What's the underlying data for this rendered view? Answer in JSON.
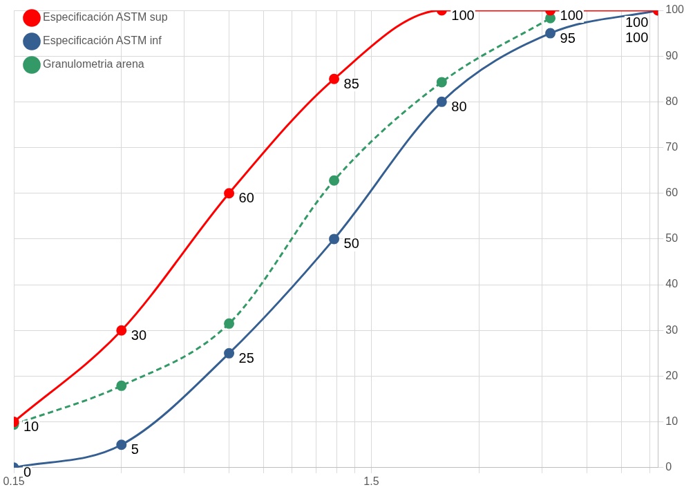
{
  "chart_data": {
    "type": "line",
    "log": "x",
    "x": [
      0.15,
      0.3,
      0.6,
      1.18,
      2.36,
      4.75,
      9.5
    ],
    "series": [
      {
        "name": "Especificación ASTM sup",
        "color": "#ff0000",
        "values": [
          10,
          30,
          60,
          85,
          100,
          100,
          100
        ],
        "value_labels": [
          "10",
          "30",
          "60",
          "85",
          "100",
          "100",
          "100"
        ]
      },
      {
        "name": "Especificación ASTM inf",
        "color": "#355f91",
        "values": [
          0,
          5,
          25,
          50,
          80,
          95,
          100
        ],
        "value_labels": [
          "0",
          "5",
          "25",
          "50",
          "80",
          "95",
          "100"
        ]
      },
      {
        "name": "Granulometria arena",
        "color": "#339966",
        "line_style": "dashed",
        "values": [
          9.4,
          17.9,
          31.5,
          62.8,
          84.3,
          98.3,
          null
        ]
      }
    ],
    "xlim": [
      0.15,
      9.5
    ],
    "xticks": [
      0.15,
      {
        "value": 0.3,
        "label": null
      },
      {
        "value": 0.45,
        "label": null
      },
      {
        "value": 0.6,
        "label": null
      },
      {
        "value": 0.75,
        "label": null
      },
      {
        "value": 0.9,
        "label": null
      },
      {
        "value": 1.05,
        "label": null
      },
      {
        "value": 1.2,
        "label": null
      },
      {
        "value": 1.35,
        "label": null
      },
      1.5,
      {
        "value": 3,
        "label": null
      },
      {
        "value": 4.5,
        "label": null
      },
      {
        "value": 6,
        "label": null
      },
      {
        "value": 7.5,
        "label": null
      },
      {
        "value": 9,
        "label": null
      }
    ],
    "ylim": [
      0,
      100
    ],
    "yticks": [
      0,
      10,
      20,
      30,
      40,
      50,
      60,
      70,
      80,
      90,
      100
    ],
    "grid": true,
    "legend": "top left",
    "marker": "circle"
  }
}
